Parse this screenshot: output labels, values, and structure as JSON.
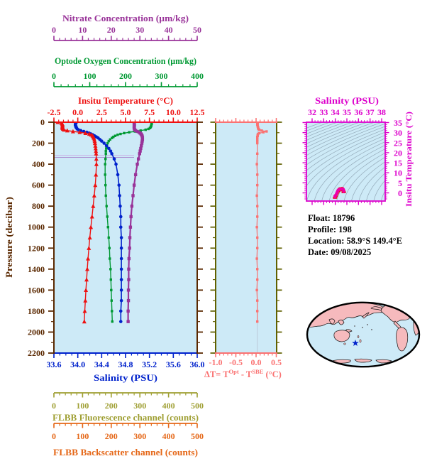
{
  "colors": {
    "plot_bg": "#cdeaf7",
    "map_land": "#f6babd",
    "map_ocean": "#cdeaf7",
    "contour": "#93a9b8",
    "star": "#0022cc",
    "ref_line_light": "#cab7e8",
    "ref_line_dark": "#ab8cd0",
    "zero_line": "#b9c6d6"
  },
  "axes": {
    "nitrate": {
      "title": "Nitrate Concentration (µm/kg)",
      "color": "#993399",
      "tick_labels": [
        "0",
        "10",
        "20",
        "30",
        "40",
        "50"
      ],
      "tick_values": [
        0,
        10,
        20,
        30,
        40,
        50
      ],
      "range": [
        0,
        50
      ]
    },
    "oxygen": {
      "title": "Optode Oxygen Concentration (µm/kg)",
      "color": "#009933",
      "tick_labels": [
        "0",
        "100",
        "200",
        "300",
        "400"
      ],
      "tick_values": [
        0,
        100,
        200,
        300,
        400
      ],
      "range": [
        0,
        400
      ]
    },
    "temperature": {
      "title": "Insitu Temperature (°C)",
      "color": "#ee1111",
      "tick_labels": [
        "-2.5",
        "0.0",
        "2.5",
        "5.0",
        "7.5",
        "10.0",
        "12.5"
      ],
      "tick_values": [
        -2.5,
        0,
        2.5,
        5,
        7.5,
        10,
        12.5
      ],
      "range": [
        -2.5,
        12.5
      ]
    },
    "salinity": {
      "title": "Salinity (PSU)",
      "color": "#0022cc",
      "tick_labels": [
        "33.6",
        "34.0",
        "34.4",
        "34.8",
        "35.2",
        "35.6",
        "36.0"
      ],
      "tick_values": [
        33.6,
        34.0,
        34.4,
        34.8,
        35.2,
        35.6,
        36.0
      ],
      "range": [
        33.6,
        36.0
      ]
    },
    "pressure": {
      "title": "Pressure (decibar)",
      "color": "#5a2800",
      "tick_labels": [
        "0",
        "200",
        "400",
        "600",
        "800",
        "1000",
        "1200",
        "1400",
        "1600",
        "1800",
        "2000",
        "2200"
      ],
      "tick_values": [
        0,
        200,
        400,
        600,
        800,
        1000,
        1200,
        1400,
        1600,
        1800,
        2000,
        2200
      ],
      "range": [
        0,
        2200
      ]
    },
    "fluorescence": {
      "title": "FLBB Fluorescence channel (counts)",
      "color": "#9f9f33",
      "tick_labels": [
        "0",
        "100",
        "200",
        "300",
        "400",
        "500"
      ],
      "tick_values": [
        0,
        100,
        200,
        300,
        400,
        500
      ],
      "range": [
        0,
        500
      ]
    },
    "backscatter": {
      "title": "FLBB Backscatter channel (counts)",
      "color": "#e56717",
      "tick_labels": [
        "0",
        "100",
        "200",
        "300",
        "400",
        "500"
      ],
      "tick_values": [
        0,
        100,
        200,
        300,
        400,
        500
      ],
      "range": [
        0,
        500
      ]
    },
    "delta_t": {
      "title_prefix": "ΔT= T",
      "title_sup1": "Opt",
      "title_mid": " - T",
      "title_sup2": "SBE",
      "title_suffix": " (°C)",
      "color": "#fa7272",
      "frame_color": "#606000",
      "tick_labels": [
        "-1.0",
        "-0.5",
        "0.0",
        "0.5"
      ],
      "tick_values": [
        -1.0,
        -0.5,
        0.0,
        0.5
      ],
      "range": [
        -1.0,
        0.51
      ]
    },
    "ts_salinity": {
      "title": "Salinity (PSU)",
      "color": "#dd00cc",
      "tick_labels": [
        "32",
        "33",
        "34",
        "35",
        "36",
        "37",
        "38"
      ],
      "tick_values": [
        32,
        33,
        34,
        35,
        36,
        37,
        38
      ]
    },
    "ts_temperature": {
      "title": "Insitu Temperature (°C)",
      "color": "#dd00cc",
      "tick_labels": [
        "35",
        "30",
        "25",
        "20",
        "15",
        "10",
        "5",
        "0"
      ],
      "tick_values": [
        35,
        30,
        25,
        20,
        15,
        10,
        5,
        0
      ]
    }
  },
  "info": {
    "lines": [
      "Float:  18796",
      "Profile:  198",
      "Location:  58.9°S  149.4°E",
      "Date:  09/08/2025"
    ]
  },
  "chart_data": [
    {
      "type": "line",
      "name": "profiles-vs-pressure",
      "ylabel": "Pressure (decibar)",
      "ylim": [
        0,
        2200
      ],
      "y_axis_inverted": true,
      "grid": false,
      "background": "#cdeaf7",
      "pressure": [
        0,
        8,
        16,
        24,
        32,
        40,
        48,
        56,
        64,
        72,
        80,
        88,
        96,
        104,
        112,
        120,
        130,
        140,
        150,
        165,
        180,
        200,
        225,
        250,
        275,
        300,
        350,
        400,
        500,
        600,
        700,
        800,
        900,
        1000,
        1100,
        1200,
        1300,
        1400,
        1500,
        1600,
        1700,
        1800,
        1900
      ],
      "series": [
        {
          "name": "Insitu Temperature (°C)",
          "color": "#ee1111",
          "marker": "triangle",
          "xlim": [
            -2.5,
            12.5
          ],
          "values": [
            -2.1,
            -1.7,
            -1.62,
            -1.6,
            -1.6,
            -1.61,
            -1.62,
            -1.6,
            -1.55,
            -1.45,
            -1.1,
            -0.5,
            0.2,
            0.8,
            1.2,
            1.4,
            1.55,
            1.63,
            1.68,
            1.73,
            1.77,
            1.8,
            1.84,
            1.87,
            1.9,
            1.92,
            1.94,
            1.95,
            1.9,
            1.83,
            1.72,
            1.61,
            1.49,
            1.37,
            1.26,
            1.16,
            1.07,
            0.99,
            0.92,
            0.85,
            0.79,
            0.73,
            0.68
          ]
        },
        {
          "name": "Salinity (PSU)",
          "color": "#0022cc",
          "marker": "circle",
          "xlim": [
            33.6,
            36.0
          ],
          "values": [
            33.97,
            33.97,
            33.96,
            33.96,
            33.96,
            33.97,
            33.97,
            33.98,
            33.99,
            34.01,
            34.05,
            34.1,
            34.15,
            34.19,
            34.22,
            34.25,
            34.28,
            34.31,
            34.34,
            34.37,
            34.4,
            34.44,
            34.48,
            34.52,
            34.55,
            34.57,
            34.61,
            34.64,
            34.67,
            34.69,
            34.7,
            34.71,
            34.72,
            34.72,
            34.73,
            34.73,
            34.73,
            34.73,
            34.73,
            34.73,
            34.73,
            34.72,
            34.72
          ]
        },
        {
          "name": "Optode Oxygen Concentration (µm/kg)",
          "color": "#009933",
          "marker": "square",
          "xlim": [
            0,
            400
          ],
          "values": [
            273,
            273,
            273,
            272,
            272,
            271,
            270,
            268,
            264,
            256,
            242,
            226,
            210,
            196,
            186,
            178,
            171,
            166,
            162,
            157,
            153,
            150,
            148,
            146,
            145,
            145,
            144,
            143,
            143,
            144,
            145,
            147,
            149,
            151,
            153,
            155,
            156,
            158,
            159,
            160,
            161,
            162,
            163
          ]
        },
        {
          "name": "Nitrate Concentration (µm/kg)",
          "color": "#993399",
          "marker": "square",
          "xlim": [
            0,
            50
          ],
          "values": [
            28.0,
            28.0,
            28.0,
            28.1,
            28.1,
            28.0,
            28.0,
            28.0,
            28.1,
            28.2,
            28.5,
            29.1,
            29.7,
            30.1,
            30.4,
            30.6,
            30.75,
            30.85,
            30.9,
            30.9,
            30.8,
            30.7,
            30.5,
            30.3,
            30.1,
            29.9,
            29.5,
            29.1,
            28.5,
            28.0,
            27.6,
            27.2,
            26.9,
            26.7,
            26.5,
            26.4,
            26.2,
            26.1,
            26.1,
            26.0,
            26.0,
            25.9,
            25.9
          ]
        }
      ],
      "reference_lines_dbar": [
        315,
        335
      ]
    },
    {
      "type": "line",
      "name": "delta-t-vs-pressure",
      "xlabel": "ΔT= T^Opt - T^SBE (°C)",
      "xlim": [
        -1.0,
        0.5
      ],
      "ylim": [
        0,
        2200
      ],
      "y_axis_inverted": true,
      "pressure": [
        0,
        8,
        16,
        24,
        32,
        40,
        48,
        56,
        64,
        72,
        80,
        88,
        96,
        104,
        112,
        120,
        130,
        140,
        150,
        165,
        180,
        200,
        300,
        400,
        500,
        600,
        700,
        800,
        900,
        1000,
        1100,
        1200,
        1300,
        1400,
        1500,
        1600,
        1700,
        1800,
        1900
      ],
      "series": [
        {
          "name": "ΔT",
          "color": "#fa7272",
          "marker": "square",
          "values": [
            0.04,
            0.04,
            0.03,
            0.03,
            0.04,
            0.04,
            0.05,
            0.05,
            0.06,
            0.08,
            0.14,
            0.26,
            0.18,
            0.08,
            0.05,
            0.04,
            0.04,
            0.03,
            0.03,
            0.03,
            0.03,
            0.03,
            0.03,
            0.02,
            0.03,
            0.03,
            0.02,
            0.03,
            0.03,
            0.02,
            0.03,
            0.03,
            0.02,
            0.03,
            0.03,
            0.02,
            0.03,
            0.03,
            0.03
          ]
        }
      ]
    },
    {
      "type": "scatter",
      "name": "ts-diagram",
      "xlabel": "Salinity (PSU)",
      "ylabel": "Insitu Temperature (°C)",
      "xlim": [
        31.5,
        38.3
      ],
      "ylim": [
        -4.1,
        35.2
      ],
      "color": "#ee00aa",
      "note": "T-S curve pairs are derived by zipping the salinity and temperature profile series above; background shows gray isopycnal contours"
    }
  ]
}
